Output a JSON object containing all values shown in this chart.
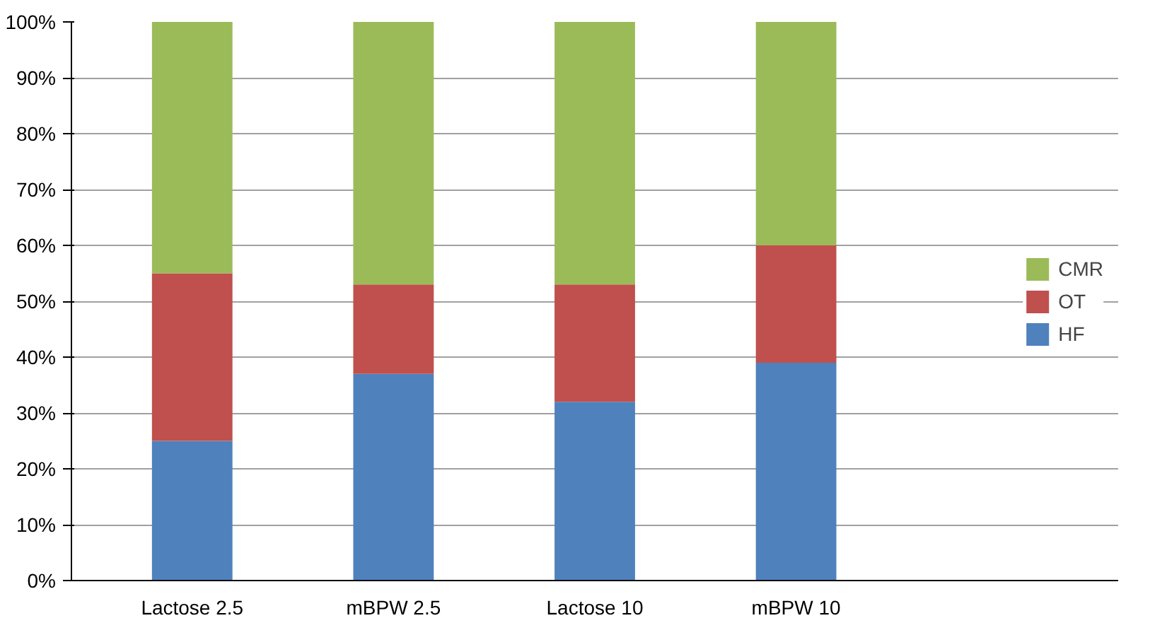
{
  "chart_data": {
    "type": "bar",
    "stacked": true,
    "categories": [
      "Lactose 2.5",
      "mBPW 2.5",
      "Lactose 10",
      "mBPW 10"
    ],
    "series": [
      {
        "name": "HF",
        "color": "#4f81bd",
        "values": [
          25,
          37,
          32,
          39
        ]
      },
      {
        "name": "OT",
        "color": "#c0504d",
        "values": [
          30,
          16,
          21,
          21
        ]
      },
      {
        "name": "CMR",
        "color": "#9bbb59",
        "values": [
          45,
          47,
          47,
          40
        ]
      }
    ],
    "ylim": [
      0,
      100
    ],
    "yticks": [
      {
        "value": 0,
        "label": "0%"
      },
      {
        "value": 10,
        "label": "10%"
      },
      {
        "value": 20,
        "label": "20%"
      },
      {
        "value": 30,
        "label": "30%"
      },
      {
        "value": 40,
        "label": "40%"
      },
      {
        "value": 50,
        "label": "50%"
      },
      {
        "value": 60,
        "label": "60%"
      },
      {
        "value": 70,
        "label": "70%"
      },
      {
        "value": 80,
        "label": "80%"
      },
      {
        "value": 90,
        "label": "90%"
      },
      {
        "value": 100,
        "label": "100%"
      }
    ],
    "grid": "y",
    "legend": "right"
  }
}
